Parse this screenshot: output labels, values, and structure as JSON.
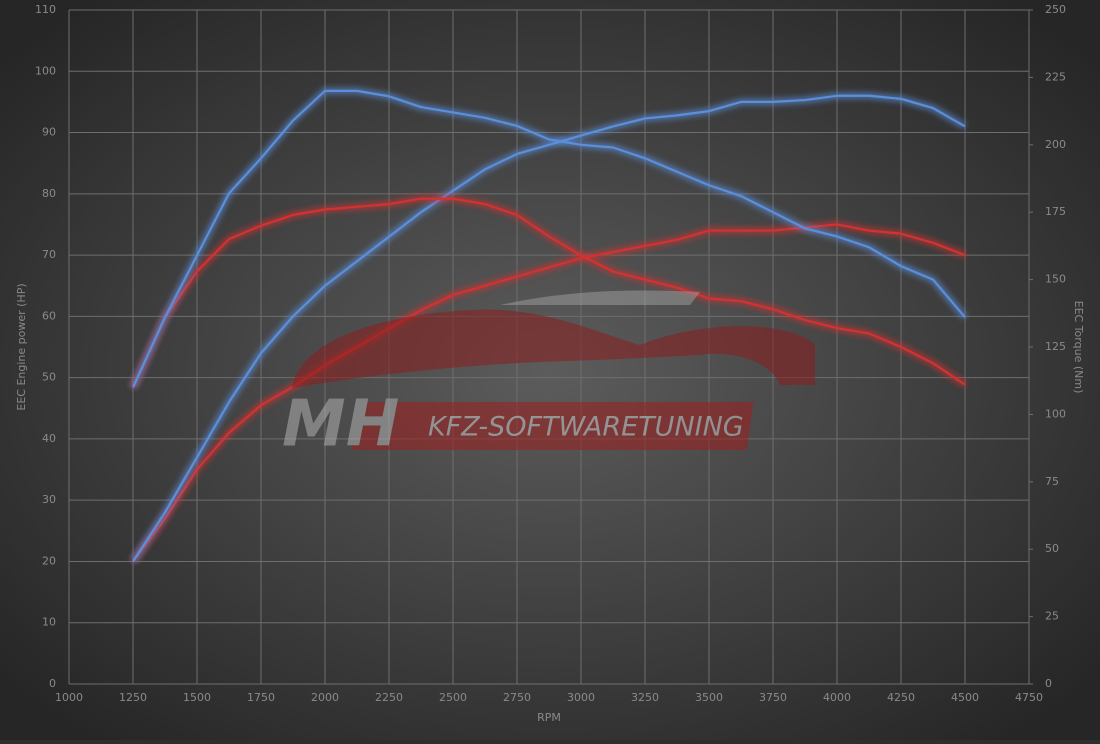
{
  "chart_data": {
    "type": "line",
    "xlabel": "RPM",
    "ylabel": "EEC Engine power (HP)",
    "y2label": "EEC Torque (Nm)",
    "watermark": {
      "left": "MH",
      "right": "KFZ-SOFTWARETUNING"
    },
    "x": [
      1250,
      1375,
      1500,
      1625,
      1750,
      1875,
      2000,
      2125,
      2250,
      2375,
      2500,
      2625,
      2750,
      2875,
      3000,
      3125,
      3250,
      3375,
      3500,
      3625,
      3750,
      3875,
      4000,
      4125,
      4250,
      4375,
      4500
    ],
    "xlim": [
      1000,
      4750
    ],
    "xticks": [
      1000,
      1250,
      1500,
      1750,
      2000,
      2250,
      2500,
      2750,
      3000,
      3250,
      3500,
      3750,
      4000,
      4250,
      4500,
      4750
    ],
    "ylim": [
      0,
      110
    ],
    "yticks": [
      0,
      10,
      20,
      30,
      40,
      50,
      60,
      70,
      80,
      90,
      100,
      110
    ],
    "y2lim": [
      0,
      250
    ],
    "y2ticks": [
      0,
      25,
      50,
      75,
      100,
      125,
      150,
      175,
      200,
      225,
      250
    ],
    "grid": true,
    "series": [
      {
        "color": "#d23232",
        "values": [
          20,
          27,
          35,
          41,
          45.5,
          48.5,
          52,
          55,
          58,
          61,
          63.5,
          65,
          66.5,
          68,
          69.5,
          70.5,
          71.5,
          72.5,
          74,
          74,
          74,
          74.5,
          75,
          74,
          73.5,
          72,
          70
        ]
      },
      {
        "color": "#5b8fdc",
        "values": [
          20,
          28,
          37,
          46,
          54,
          60,
          65,
          69,
          73,
          77,
          80.5,
          84,
          86.5,
          88,
          89.5,
          91,
          92.3,
          92.8,
          93.5,
          95,
          95,
          95.3,
          96,
          96,
          95.5,
          94,
          91
        ]
      },
      {
        "color": "#d23232",
        "axis": "y2",
        "values": [
          110,
          136,
          153,
          165,
          170,
          174,
          176,
          177,
          178,
          180,
          180,
          178,
          174,
          166,
          159,
          153,
          150,
          147,
          143,
          142,
          139,
          135,
          132,
          130,
          125,
          119,
          111
        ]
      },
      {
        "color": "#5b8fdc",
        "axis": "y2",
        "values": [
          110,
          136,
          159,
          182,
          195,
          209,
          220,
          220,
          218,
          214,
          212,
          210,
          207,
          202,
          200,
          199,
          195,
          190,
          185,
          181,
          175,
          169,
          166,
          162,
          155,
          150,
          136
        ]
      }
    ]
  }
}
